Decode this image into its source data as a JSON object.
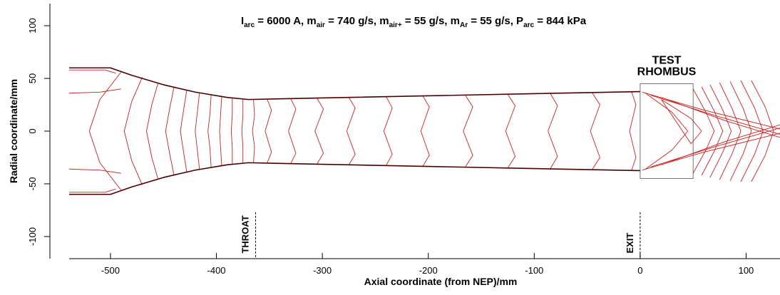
{
  "chart_data": {
    "type": "contour",
    "title": [
      {
        "text": "I"
      },
      {
        "sub": "arc"
      },
      {
        "text": " = 6000 A, m"
      },
      {
        "sub": "air"
      },
      {
        "text": " = 740 g/s, m"
      },
      {
        "sub": "air+"
      },
      {
        "text": " = 55 g/s, m"
      },
      {
        "sub": "Ar"
      },
      {
        "text": " = 55 g/s, P"
      },
      {
        "sub": "arc"
      },
      {
        "text": " = 844 kPa"
      }
    ],
    "xlabel": "Axial coordinate (from NEP)/mm",
    "ylabel": "Radial coordinate/mm",
    "xlim": [
      -539,
      132
    ],
    "ylim": [
      -121,
      121
    ],
    "xticks": [
      -500,
      -400,
      -300,
      -200,
      -100,
      0,
      100
    ],
    "yticks": [
      -100,
      -50,
      0,
      50,
      100
    ],
    "wall_color": "#4a0000",
    "contour_color": "#c8201e",
    "walls": [
      {
        "x": [
          -539,
          -500,
          -480,
          -450,
          -420,
          -390,
          -370,
          -300,
          -200,
          -100,
          0
        ],
        "y": [
          60,
          60,
          53,
          44,
          37,
          32,
          30,
          31.5,
          33.5,
          35.5,
          37.5
        ]
      },
      {
        "x": [
          -539,
          -500,
          -480,
          -450,
          -420,
          -390,
          -370,
          -300,
          -200,
          -100,
          0
        ],
        "y": [
          -60,
          -60,
          -53,
          -44,
          -37,
          -32,
          -30,
          -31.5,
          -33.5,
          -35.5,
          -37.5
        ]
      }
    ],
    "contours": [
      {
        "x": [
          -539,
          -505,
          -495
        ],
        "y": [
          58,
          58,
          55
        ]
      },
      {
        "x": [
          -539,
          -505,
          -495
        ],
        "y": [
          -58,
          -58,
          -55
        ]
      },
      {
        "x": [
          -539,
          -510,
          -490
        ],
        "y": [
          36,
          37,
          40
        ]
      },
      {
        "x": [
          -539,
          -510,
          -490
        ],
        "y": [
          -36,
          -37,
          -40
        ]
      },
      {
        "x": [
          -490,
          -510,
          -520,
          -510,
          -490
        ],
        "y": [
          56,
          30,
          0,
          -30,
          -56
        ]
      },
      {
        "x": [
          -470,
          -480,
          -487,
          -480,
          -470
        ],
        "y": [
          51,
          28,
          0,
          -28,
          -51
        ]
      },
      {
        "x": [
          -455,
          -461,
          -466,
          -461,
          -455
        ],
        "y": [
          46,
          25,
          0,
          -25,
          -46
        ]
      },
      {
        "x": [
          -440,
          -444,
          -448,
          -444,
          -440
        ],
        "y": [
          42,
          22,
          0,
          -22,
          -42
        ]
      },
      {
        "x": [
          -428,
          -431,
          -434,
          -431,
          -428
        ],
        "y": [
          39,
          20,
          0,
          -20,
          -39
        ]
      },
      {
        "x": [
          -416,
          -418,
          -420,
          -418,
          -416
        ],
        "y": [
          36,
          18,
          0,
          -18,
          -36
        ]
      },
      {
        "x": [
          -405,
          -406,
          -408,
          -406,
          -405
        ],
        "y": [
          34,
          17,
          0,
          -17,
          -34
        ]
      },
      {
        "x": [
          -395,
          -396,
          -397,
          -396,
          -395
        ],
        "y": [
          33,
          16,
          0,
          -16,
          -33
        ]
      },
      {
        "x": [
          -385,
          -385,
          -386,
          -385,
          -385
        ],
        "y": [
          31,
          16,
          0,
          -16,
          -31
        ]
      },
      {
        "x": [
          -375,
          -375,
          -376,
          -375,
          -375
        ],
        "y": [
          30,
          15,
          0,
          -15,
          -30
        ]
      },
      {
        "x": [
          -365,
          -364,
          -366,
          -364,
          -365
        ],
        "y": [
          30,
          15,
          0,
          -15,
          -30
        ]
      },
      {
        "x": [
          -352,
          -348,
          -354,
          -348,
          -352
        ],
        "y": [
          30,
          20,
          0,
          -20,
          -30
        ]
      },
      {
        "x": [
          -330,
          -325,
          -332,
          -325,
          -330
        ],
        "y": [
          31,
          21,
          0,
          -21,
          -31
        ]
      },
      {
        "x": [
          -305,
          -299,
          -307,
          -299,
          -305
        ],
        "y": [
          31,
          21,
          0,
          -21,
          -31
        ]
      },
      {
        "x": [
          -275,
          -269,
          -277,
          -269,
          -275
        ],
        "y": [
          32,
          22,
          0,
          -22,
          -32
        ]
      },
      {
        "x": [
          -240,
          -234,
          -242,
          -234,
          -240
        ],
        "y": [
          33,
          22,
          0,
          -22,
          -33
        ]
      },
      {
        "x": [
          -205,
          -199,
          -207,
          -199,
          -205
        ],
        "y": [
          33,
          23,
          0,
          -23,
          -33
        ]
      },
      {
        "x": [
          -165,
          -158,
          -167,
          -158,
          -165
        ],
        "y": [
          34,
          23,
          0,
          -23,
          -34
        ]
      },
      {
        "x": [
          -125,
          -118,
          -127,
          -118,
          -125
        ],
        "y": [
          35,
          24,
          0,
          -24,
          -35
        ]
      },
      {
        "x": [
          -85,
          -78,
          -87,
          -78,
          -85
        ],
        "y": [
          36,
          24,
          0,
          -24,
          -36
        ]
      },
      {
        "x": [
          -45,
          -38,
          -47,
          -38,
          -45
        ],
        "y": [
          36,
          25,
          0,
          -25,
          -36
        ]
      },
      {
        "x": [
          -8,
          -4,
          -10,
          -4,
          -8
        ],
        "y": [
          37,
          25,
          0,
          -25,
          -37
        ]
      },
      {
        "x": [
          5,
          30,
          45,
          30,
          5
        ],
        "y": [
          36,
          18,
          0,
          -18,
          -36
        ]
      },
      {
        "x": [
          20,
          48,
          58,
          48,
          20
        ],
        "y": [
          30,
          12,
          0,
          -12,
          30
        ]
      },
      {
        "x": [
          50,
          62,
          70,
          62,
          50
        ],
        "y": [
          40,
          18,
          0,
          -18,
          -40
        ]
      },
      {
        "x": [
          58,
          70,
          78,
          70,
          58
        ],
        "y": [
          42,
          19,
          0,
          -19,
          -42
        ]
      },
      {
        "x": [
          66,
          78,
          86,
          78,
          66
        ],
        "y": [
          44,
          20,
          0,
          -20,
          -44
        ]
      },
      {
        "x": [
          75,
          87,
          95,
          87,
          75
        ],
        "y": [
          46,
          21,
          0,
          -21,
          -46
        ]
      },
      {
        "x": [
          85,
          97,
          105,
          97,
          85
        ],
        "y": [
          47,
          22,
          0,
          -22,
          -47
        ]
      },
      {
        "x": [
          95,
          108,
          116,
          108,
          95
        ],
        "y": [
          48,
          22,
          0,
          -22,
          -48
        ]
      },
      {
        "x": [
          105,
          118,
          126,
          118,
          105
        ],
        "y": [
          48,
          23,
          0,
          -23,
          -48
        ]
      },
      {
        "x": [
          2,
          60,
          132
        ],
        "y": [
          37,
          20,
          2
        ]
      },
      {
        "x": [
          2,
          60,
          132
        ],
        "y": [
          -37,
          -20,
          -2
        ]
      },
      {
        "x": [
          10,
          70,
          132
        ],
        "y": [
          34,
          15,
          -3
        ]
      },
      {
        "x": [
          10,
          70,
          132
        ],
        "y": [
          -34,
          -15,
          3
        ]
      },
      {
        "x": [
          20,
          80,
          132
        ],
        "y": [
          32,
          10,
          -6
        ]
      },
      {
        "x": [
          20,
          80,
          132
        ],
        "y": [
          -32,
          -10,
          6
        ]
      }
    ],
    "annotations": [
      {
        "text": "THROAT",
        "x": -363,
        "y": [
          -77,
          -120
        ]
      },
      {
        "text": "EXIT",
        "x": 0,
        "y": [
          -77,
          -120
        ]
      }
    ],
    "test_region": {
      "label": [
        "TEST",
        "RHOMBUS"
      ],
      "x": [
        0,
        50
      ],
      "y": [
        -45,
        45
      ]
    }
  }
}
